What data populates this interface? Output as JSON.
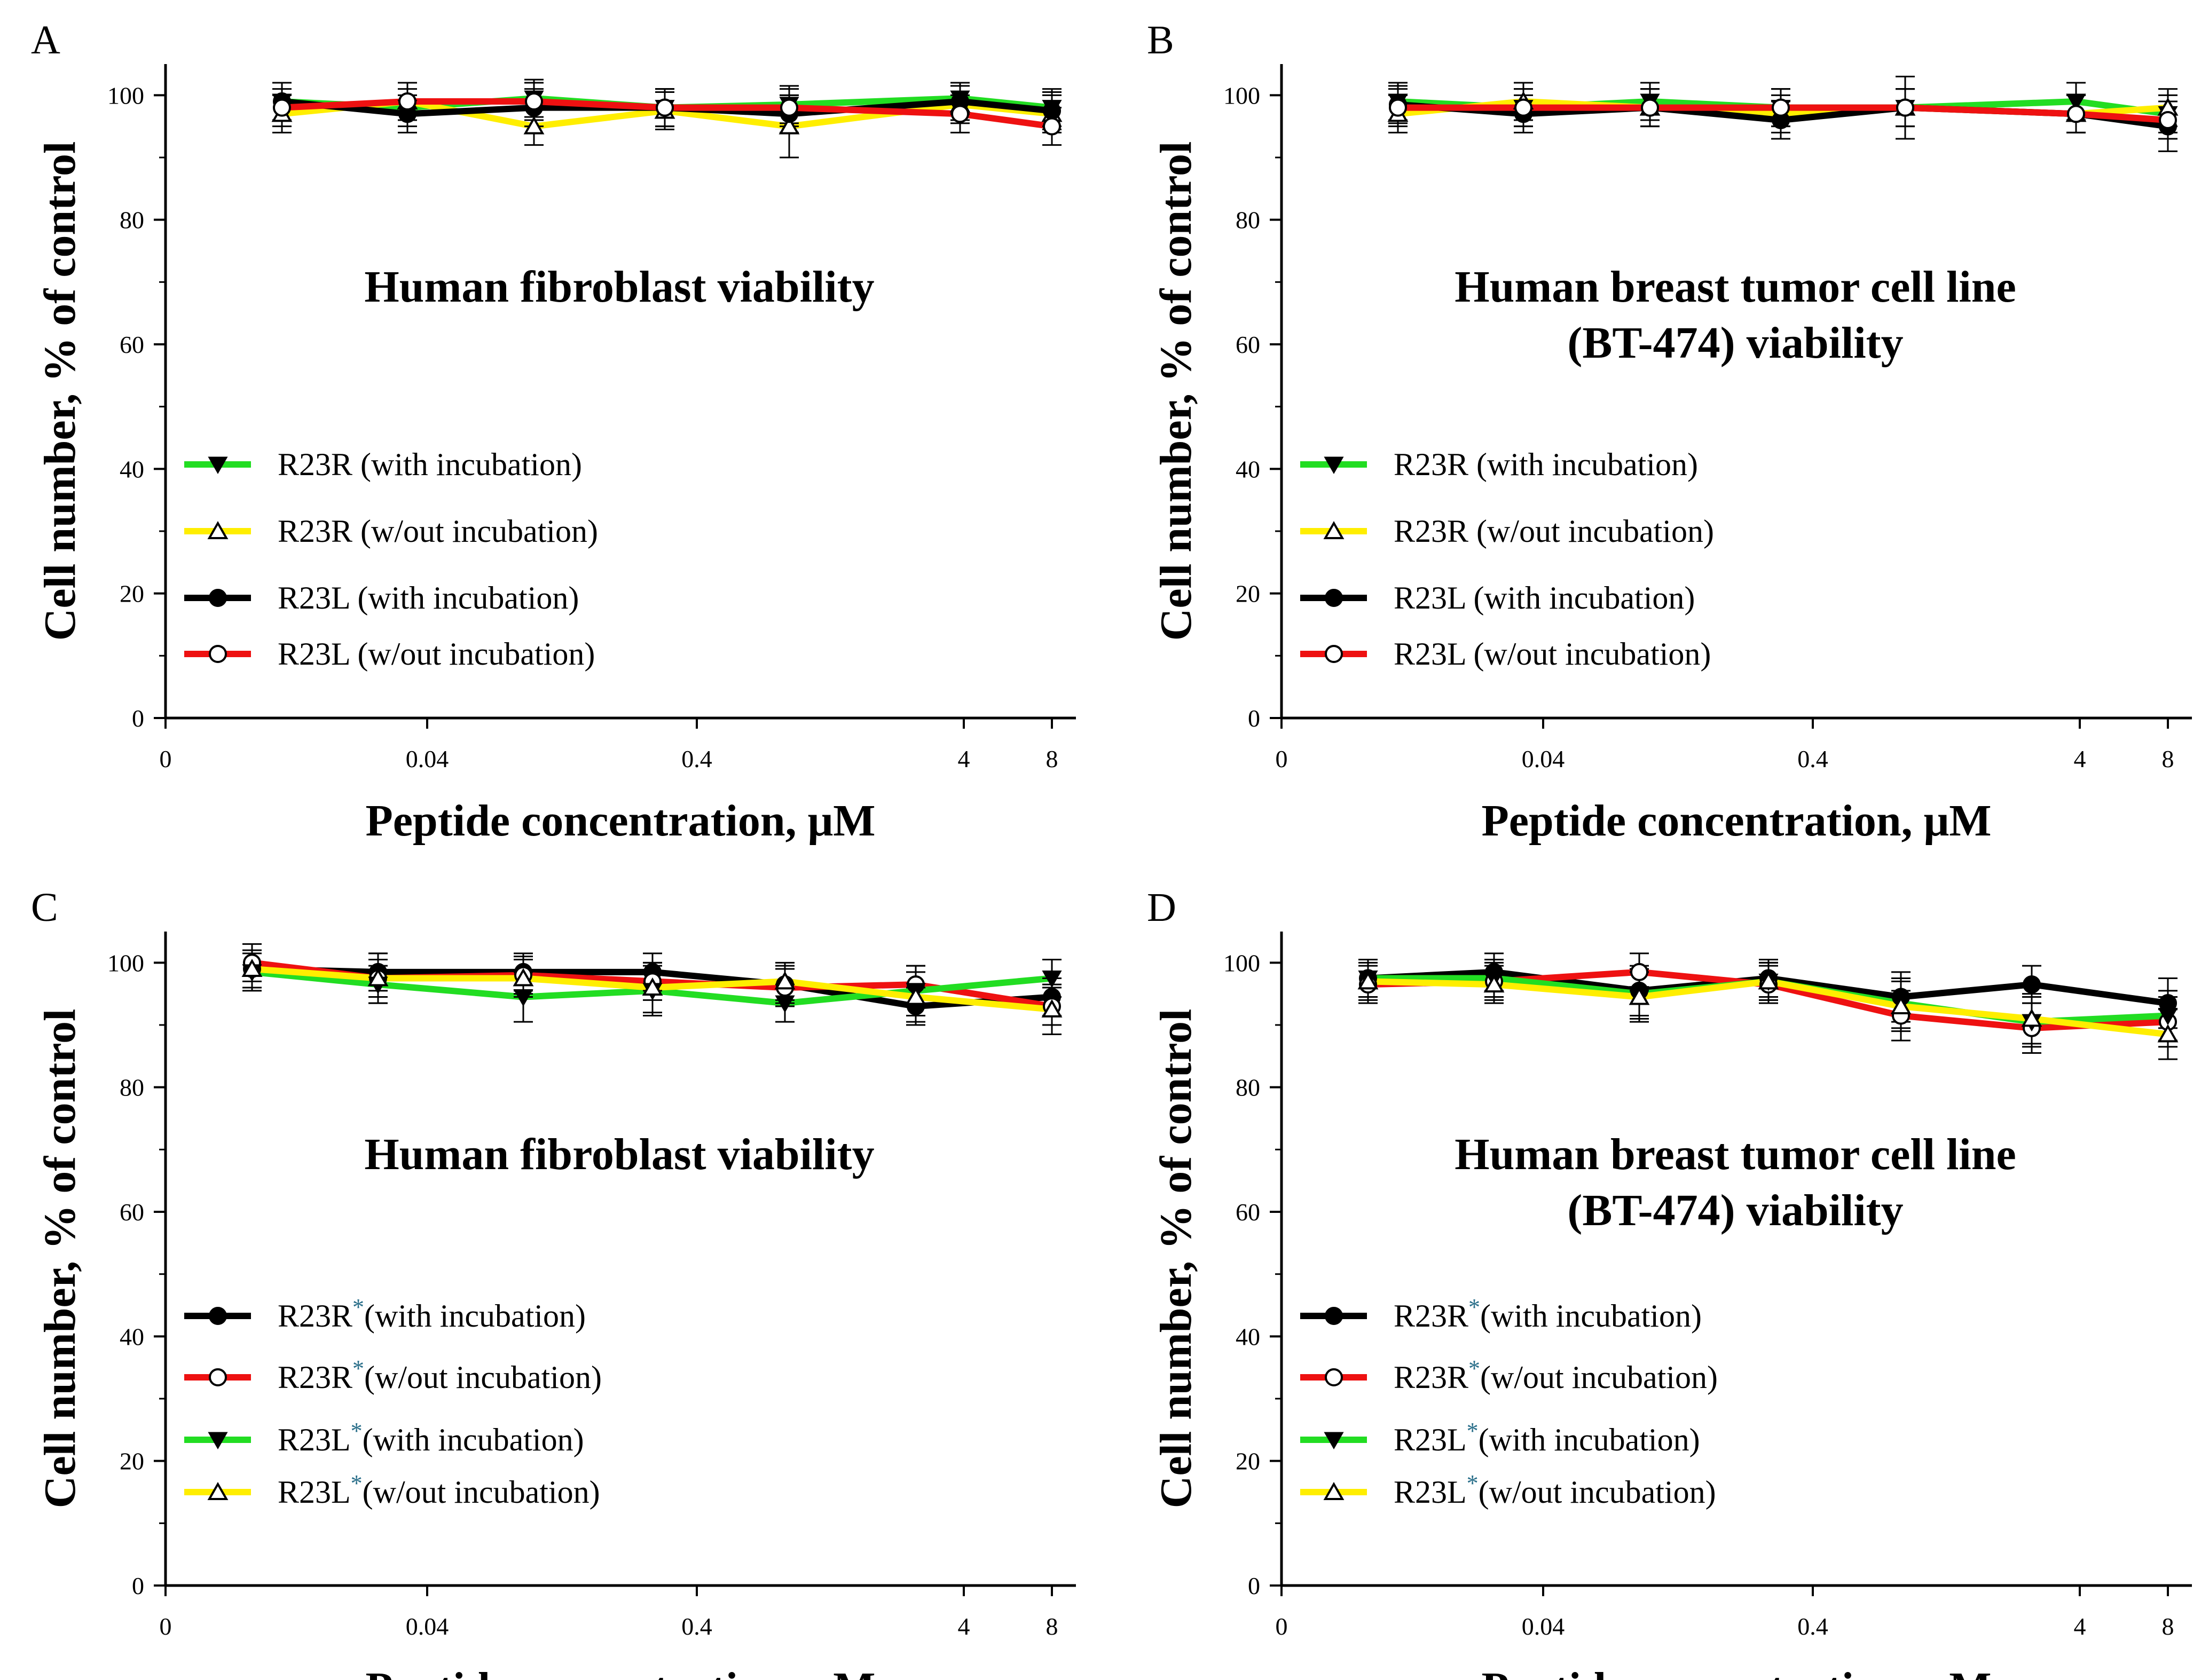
{
  "chart_data": [
    {
      "panel_label": "A",
      "type": "line",
      "title_lines": [
        "Human fibroblast viability"
      ],
      "xlabel": "Peptide concentration, μM",
      "ylabel": "Cell number, % of control",
      "ylim": [
        0,
        105
      ],
      "y_ticks": [
        0,
        20,
        40,
        60,
        80,
        100
      ],
      "x_tick_labels": [
        "0",
        "0.04",
        "0.4",
        "4",
        "8"
      ],
      "x_positions": [
        1,
        2,
        3,
        4,
        5,
        6,
        7
      ],
      "legend": [
        {
          "base": "R23R",
          "star": "",
          "rest": " (with incubation)",
          "color": "#22dd22",
          "marker": "triangle-down-filled"
        },
        {
          "base": "R23R",
          "star": "",
          "rest": " (w/out incubation)",
          "color": "#ffee00",
          "marker": "triangle-up-open"
        },
        {
          "base": "R23L",
          "star": "",
          "rest": " (with incubation)",
          "color": "#000000",
          "marker": "circle-filled"
        },
        {
          "base": "R23L",
          "star": "",
          "rest": " (w/out incubation)",
          "color": "#ee1111",
          "marker": "circle-open"
        }
      ],
      "series": [
        {
          "name": "R23R (with incubation)",
          "values": [
            99,
            98,
            99.5,
            98,
            98.5,
            99.5,
            98
          ],
          "errors": [
            3,
            3,
            3,
            3,
            3,
            2.5,
            3
          ]
        },
        {
          "name": "R23R (w/out incubation)",
          "values": [
            97,
            99,
            95,
            97.5,
            95,
            98.5,
            97
          ],
          "errors": [
            3,
            3,
            3,
            3,
            5,
            3,
            3
          ]
        },
        {
          "name": "R23L (with incubation)",
          "values": [
            99,
            97,
            98,
            98,
            97,
            99,
            97.5
          ],
          "errors": [
            3,
            3,
            3,
            3,
            3,
            3,
            3
          ]
        },
        {
          "name": "R23L (w/out incubation)",
          "values": [
            98,
            99,
            99,
            98,
            98,
            97,
            95
          ],
          "errors": [
            3,
            3,
            3,
            3,
            3,
            3,
            3
          ]
        }
      ]
    },
    {
      "panel_label": "B",
      "type": "line",
      "title_lines": [
        "Human breast tumor cell line",
        "(BT-474) viability"
      ],
      "xlabel": "Peptide concentration, μM",
      "ylabel": "Cell number, % of control",
      "ylim": [
        0,
        105
      ],
      "y_ticks": [
        0,
        20,
        40,
        60,
        80,
        100
      ],
      "x_tick_labels": [
        "0",
        "0.04",
        "0.4",
        "4",
        "8"
      ],
      "x_positions": [
        1,
        2,
        3,
        4,
        5,
        6,
        7
      ],
      "legend": [
        {
          "base": "R23R",
          "star": "",
          "rest": " (with incubation)",
          "color": "#22dd22",
          "marker": "triangle-down-filled"
        },
        {
          "base": "R23R",
          "star": "",
          "rest": " (w/out incubation)",
          "color": "#ffee00",
          "marker": "triangle-up-open"
        },
        {
          "base": "R23L",
          "star": "",
          "rest": " (with incubation)",
          "color": "#000000",
          "marker": "circle-filled"
        },
        {
          "base": "R23L",
          "star": "",
          "rest": " (w/out incubation)",
          "color": "#ee1111",
          "marker": "circle-open"
        }
      ],
      "series": [
        {
          "name": "R23R (with incubation)",
          "values": [
            99,
            98,
            99,
            98,
            98,
            99,
            97
          ],
          "errors": [
            3,
            3,
            3,
            3,
            3,
            3,
            3
          ]
        },
        {
          "name": "R23R (w/out incubation)",
          "values": [
            97,
            99,
            98,
            97,
            98,
            97,
            98
          ],
          "errors": [
            3,
            3,
            3,
            3,
            5,
            3,
            3
          ]
        },
        {
          "name": "R23L (with incubation)",
          "values": [
            98.5,
            97,
            98,
            96,
            98,
            97,
            95
          ],
          "errors": [
            3,
            3,
            3,
            3,
            3,
            3,
            4
          ]
        },
        {
          "name": "R23L (w/out incubation)",
          "values": [
            98,
            98,
            98,
            98,
            98,
            97,
            96
          ],
          "errors": [
            3,
            3,
            3,
            3,
            3,
            3,
            3
          ]
        }
      ]
    },
    {
      "panel_label": "C",
      "type": "line",
      "title_lines": [
        "Human fibroblast viability"
      ],
      "xlabel": "Peptide concentration, μM",
      "ylabel": "Cell number, % of control",
      "ylim": [
        0,
        105
      ],
      "y_ticks": [
        0,
        20,
        40,
        60,
        80,
        100
      ],
      "x_tick_labels": [
        "0",
        "0.04",
        "0.4",
        "4",
        "8"
      ],
      "x_positions": [
        1,
        2,
        3,
        4,
        5,
        6,
        7
      ],
      "legend": [
        {
          "base": "R23R",
          "star": "*",
          "rest": "(with incubation)",
          "color": "#000000",
          "marker": "circle-filled"
        },
        {
          "base": "R23R",
          "star": "*",
          "rest": "(w/out incubation)",
          "color": "#ee1111",
          "marker": "circle-open"
        },
        {
          "base": "R23L",
          "star": "*",
          "rest": "(with incubation)",
          "color": "#22dd22",
          "marker": "triangle-down-filled"
        },
        {
          "base": "R23L",
          "star": "*",
          "rest": "(w/out incubation)",
          "color": "#ffee00",
          "marker": "triangle-up-open"
        }
      ],
      "series": [
        {
          "name": "R23R*(with incubation)",
          "values": [
            99,
            98.5,
            98.5,
            98.5,
            96.5,
            93,
            94.5
          ],
          "errors": [
            3,
            3,
            3,
            3,
            3,
            3,
            3
          ]
        },
        {
          "name": "R23R*(w/out incubation)",
          "values": [
            100,
            97.5,
            98,
            97,
            96,
            96.5,
            93
          ],
          "errors": [
            3,
            3,
            3,
            3,
            3,
            3,
            3
          ]
        },
        {
          "name": "R23L*(with incubation)",
          "values": [
            98.5,
            96.5,
            94.5,
            95.5,
            93.5,
            95.5,
            97.5
          ],
          "errors": [
            3,
            3,
            4,
            4,
            3,
            4,
            3
          ]
        },
        {
          "name": "R23L*(w/out incubation)",
          "values": [
            99,
            97.5,
            97.5,
            96,
            97,
            94.5,
            92.5
          ],
          "errors": [
            3,
            4,
            3,
            4,
            3,
            4,
            4
          ]
        }
      ]
    },
    {
      "panel_label": "D",
      "type": "line",
      "title_lines": [
        "Human breast tumor cell line",
        "(BT-474) viability"
      ],
      "xlabel": "Peptide concentration, μM",
      "ylabel": "Cell number, % of control",
      "ylim": [
        0,
        105
      ],
      "y_ticks": [
        0,
        20,
        40,
        60,
        80,
        100
      ],
      "x_tick_labels": [
        "0",
        "0.04",
        "0.4",
        "4",
        "8"
      ],
      "x_positions": [
        1,
        2,
        3,
        4,
        5,
        6,
        7
      ],
      "legend": [
        {
          "base": "R23R",
          "star": "*",
          "rest": "(with incubation)",
          "color": "#000000",
          "marker": "circle-filled"
        },
        {
          "base": "R23R",
          "star": "*",
          "rest": "(w/out incubation)",
          "color": "#ee1111",
          "marker": "circle-open"
        },
        {
          "base": "R23L",
          "star": "*",
          "rest": "(with incubation)",
          "color": "#22dd22",
          "marker": "triangle-down-filled"
        },
        {
          "base": "R23L",
          "star": "*",
          "rest": "(w/out incubation)",
          "color": "#ffee00",
          "marker": "triangle-up-open"
        }
      ],
      "series": [
        {
          "name": "R23R*(with incubation)",
          "values": [
            97.5,
            98.5,
            95.5,
            97.5,
            94.5,
            96.5,
            93.5
          ],
          "errors": [
            3,
            3,
            4,
            3,
            4,
            3,
            4
          ]
        },
        {
          "name": "R23R*(w/out incubation)",
          "values": [
            96.5,
            97,
            98.5,
            96.5,
            91.5,
            89.5,
            90.5
          ],
          "errors": [
            3,
            3,
            3,
            3,
            4,
            4,
            4
          ]
        },
        {
          "name": "R23L*(with incubation)",
          "values": [
            97.5,
            97.5,
            95,
            97,
            93.5,
            90.5,
            91.5
          ],
          "errors": [
            3,
            3,
            4,
            3,
            4,
            4,
            4
          ]
        },
        {
          "name": "R23L*(w/out incubation)",
          "values": [
            97,
            96.5,
            94.5,
            97,
            93,
            91,
            88.5
          ],
          "errors": [
            3,
            3,
            4,
            3,
            4,
            4,
            4
          ]
        }
      ]
    }
  ]
}
